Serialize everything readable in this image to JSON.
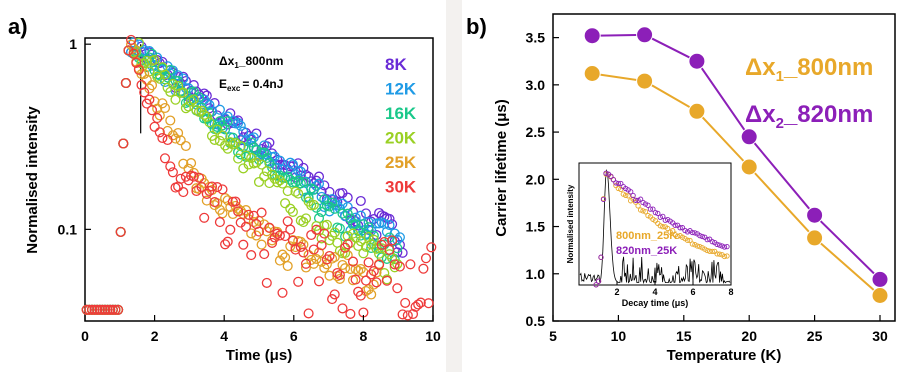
{
  "panels": {
    "a": {
      "letter": "a)"
    },
    "b": {
      "letter": "b)"
    }
  },
  "chart_data": [
    {
      "panel": "a",
      "type": "scatter",
      "xlabel": "Time (μs)",
      "ylabel": "Normalised intensity",
      "xlim": [
        0,
        10
      ],
      "ylim": [
        0.032,
        1.08
      ],
      "yscale": "log",
      "x_ticks": [
        0,
        2,
        4,
        6,
        8,
        10
      ],
      "y_ticks": [
        {
          "value": 1,
          "label": "1"
        },
        {
          "value": 0.1,
          "label": "0.1"
        }
      ],
      "grid": false,
      "marker": "open-circle",
      "annotation": {
        "line1": "Δx",
        "sub1": "1",
        "line1_rest": "_800nm",
        "line2": "E",
        "sub2": "exc",
        "line2_rest": "= 0.4nJ"
      },
      "instrument_response_marker_x": 1.6,
      "legend_position": "right",
      "series": [
        {
          "name": "8K",
          "color": "#6a2bd6",
          "peak_x": 1.3,
          "tau_fast": 2.7,
          "tau_slow": 2.7,
          "split_x": 9,
          "floor": 0.035,
          "end_x": 9.2
        },
        {
          "name": "12K",
          "color": "#1f9be6",
          "peak_x": 1.3,
          "tau_fast": 2.55,
          "tau_slow": 2.55,
          "split_x": 9,
          "floor": 0.035,
          "end_x": 9.1
        },
        {
          "name": "16K",
          "color": "#1ac88a",
          "peak_x": 1.3,
          "tau_fast": 2.35,
          "tau_slow": 2.35,
          "split_x": 9,
          "floor": 0.035,
          "end_x": 9.0
        },
        {
          "name": "20K",
          "color": "#9ad024",
          "peak_x": 1.3,
          "tau_fast": 2.05,
          "tau_slow": 2.05,
          "split_x": 9,
          "floor": 0.04,
          "end_x": 9.0
        },
        {
          "name": "25K",
          "color": "#e2a028",
          "peak_x": 1.3,
          "tau_fast": 1.0,
          "tau_slow": 2.0,
          "split_x": 3.5,
          "floor": 0.045,
          "end_x": 8.5
        },
        {
          "name": "30K",
          "color": "#ee3a3a",
          "peak_x": 1.3,
          "tau_fast": 0.7,
          "tau_slow": 1.8,
          "split_x": 2.6,
          "floor": 0.05,
          "end_x": 10
        }
      ]
    },
    {
      "panel": "b",
      "type": "line",
      "xlabel": "Temperature (K)",
      "ylabel": "Carrier lifetime (μs)",
      "xlim": [
        5,
        32
      ],
      "ylim": [
        0.5,
        3.75
      ],
      "x_ticks": [
        5,
        10,
        15,
        20,
        25,
        30
      ],
      "y_ticks": [
        0.5,
        1.0,
        1.5,
        2.0,
        2.5,
        3.0,
        3.5
      ],
      "grid": false,
      "legend_position": "top-right",
      "x": [
        8,
        12,
        16,
        20,
        25,
        30
      ],
      "series": [
        {
          "name": "Δx",
          "sub": "1",
          "rest": "_800nm",
          "color": "#e8a82a",
          "values": [
            3.12,
            3.04,
            2.72,
            2.13,
            1.38,
            0.77
          ]
        },
        {
          "name": "Δx",
          "sub": "2",
          "rest": "_820nm",
          "color": "#8c1fb8",
          "values": [
            3.52,
            3.53,
            3.25,
            2.45,
            1.62,
            0.94
          ]
        }
      ],
      "inset": {
        "type": "scatter",
        "xlabel": "Decay time (μs)",
        "ylabel": "Normalised intensity",
        "xlim": [
          0,
          8
        ],
        "x_ticks": [
          2,
          4,
          6,
          8
        ],
        "legend": [
          "800nm_25K",
          "820nm_25K"
        ],
        "legend_colors": [
          "#e8a82a",
          "#8c1fb8"
        ],
        "series": [
          {
            "name": "800nm_25K",
            "color": "#e8a82a",
            "tau": 4.8
          },
          {
            "name": "820nm_25K",
            "color": "#8c1fb8",
            "tau": 6.2
          }
        ],
        "irf_color": "#000000"
      }
    }
  ]
}
